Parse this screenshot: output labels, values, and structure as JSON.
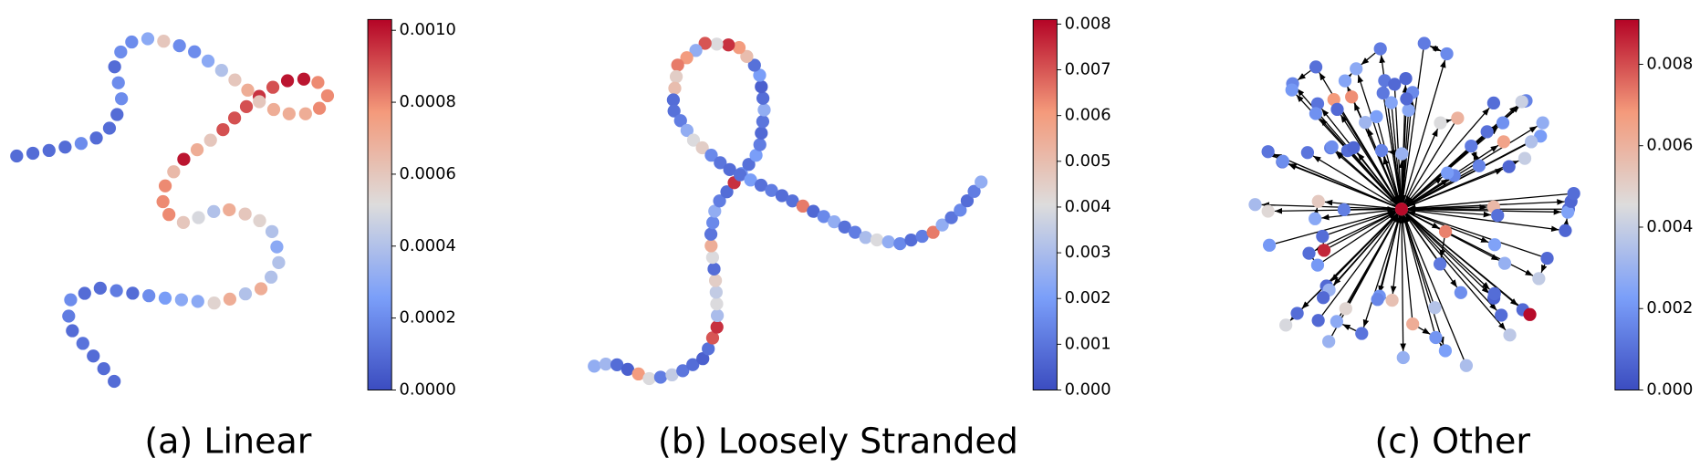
{
  "chart_data": [
    {
      "type": "network",
      "layout": "chain",
      "directed": false,
      "colormap": "coolwarm",
      "title": "(a) Linear",
      "values": [
        0.0001,
        0.0001,
        0.0001,
        0.00012,
        0.0001,
        0.00015,
        0.0002,
        0.0001,
        0.0001,
        0.00015,
        0.0001,
        0.0002,
        0.00025,
        0.0003,
        0.0003,
        0.00055,
        0.0007,
        0.0004,
        0.0007,
        0.0004,
        0.0004,
        0.0003,
        0.0004,
        0.00055,
        0.0006,
        0.0007,
        0.0004,
        0.0005,
        0.0006,
        0.0008,
        0.0008,
        0.0008,
        0.00065,
        0.001,
        0.0007,
        0.0006,
        0.0009,
        0.0009,
        0.0009,
        0.00095,
        0.0009,
        0.001,
        0.001,
        0.0008,
        0.0008,
        0.0008,
        0.0007,
        0.0007,
        0.0007,
        0.0006,
        0.0007,
        0.0006,
        0.0004,
        0.0003,
        0.0002,
        0.0002,
        0.0006,
        0.0003,
        0.0002,
        0.0002,
        0.0001,
        0.0002,
        0.0002,
        0.0001,
        0.0001,
        0.0001,
        0.0002,
        0.0001,
        0.0001,
        0.0001,
        0.0001
      ],
      "colorbar": {
        "clim": [
          0,
          0.00103
        ],
        "ticks": [
          {
            "value": 0,
            "label": "0.0000"
          },
          {
            "value": 0.0002,
            "label": "0.0002"
          },
          {
            "value": 0.0004,
            "label": "0.0004"
          },
          {
            "value": 0.0006,
            "label": "0.0006"
          },
          {
            "value": 0.0008,
            "label": "0.0008"
          },
          {
            "value": 0.001,
            "label": "0.0010"
          }
        ]
      }
    },
    {
      "type": "network",
      "layout": "chain",
      "directed": true,
      "colormap": "coolwarm",
      "title": "(b) Loosely Stranded",
      "values": [
        0.0025,
        0.0028,
        0.0008,
        0.0005,
        0.006,
        0.004,
        0.0012,
        0.0035,
        0.001,
        0.0008,
        0.0005,
        0.0009,
        0.007,
        0.0075,
        0.003,
        0.004,
        0.0035,
        0.0045,
        0.0008,
        0.004,
        0.0055,
        0.001,
        0.0015,
        0.0025,
        0.0012,
        0.0008,
        0.0075,
        0.0018,
        0.0009,
        0.002,
        0.0012,
        0.0007,
        0.001,
        0.0025,
        0.0008,
        0.0005,
        0.002,
        0.0009,
        0.005,
        0.006,
        0.0075,
        0.004,
        0.007,
        0.0025,
        0.006,
        0.0065,
        0.0045,
        0.005,
        0.0008,
        0.0009,
        0.0012,
        0.0025,
        0.004,
        0.0045,
        0.0015,
        0.001,
        0.0008,
        0.0009,
        0.002,
        0.0009,
        0.0012,
        0.0008,
        0.0009,
        0.0065,
        0.0007,
        0.0015,
        0.0025,
        0.0009,
        0.0012,
        0.003,
        0.004,
        0.0025,
        0.0015,
        0.0008,
        0.0012,
        0.0065,
        0.0025,
        0.001,
        0.0015,
        0.0008,
        0.0012,
        0.0025
      ],
      "colorbar": {
        "clim": [
          0,
          0.0081
        ],
        "ticks": [
          {
            "value": 0,
            "label": "0.000"
          },
          {
            "value": 0.001,
            "label": "0.001"
          },
          {
            "value": 0.002,
            "label": "0.002"
          },
          {
            "value": 0.003,
            "label": "0.003"
          },
          {
            "value": 0.004,
            "label": "0.004"
          },
          {
            "value": 0.005,
            "label": "0.005"
          },
          {
            "value": 0.006,
            "label": "0.006"
          },
          {
            "value": 0.007,
            "label": "0.007"
          },
          {
            "value": 0.008,
            "label": "0.008"
          }
        ]
      }
    },
    {
      "type": "network",
      "layout": "star",
      "directed": true,
      "colormap": "coolwarm",
      "title": "(c) Other",
      "values": [
        0.009,
        0.0008,
        0.002,
        0.0012,
        0.003,
        0.0007,
        0.0025,
        0.0045,
        0.0009,
        0.0015,
        0.007,
        0.0022,
        0.0006,
        0.0035,
        0.0011,
        0.0028,
        0.0008,
        0.006,
        0.0018,
        0.0009,
        0.004,
        0.0013,
        0.0024,
        0.0007,
        0.0086,
        0.0016,
        0.003,
        0.001,
        0.0052,
        0.0021,
        0.0008,
        0.0027,
        0.0014,
        0.0065,
        0.0009,
        0.0019,
        0.0033,
        0.0007,
        0.0023,
        0.0011,
        0.0048,
        0.0017,
        0.0008,
        0.0029,
        0.0012,
        0.0058,
        0.0009,
        0.0021,
        0.0038,
        0.0007,
        0.0015,
        0.0026,
        0.001,
        0.0072,
        0.0018,
        0.0008,
        0.0031,
        0.0013,
        0.0044,
        0.0009,
        0.0024,
        0.0016,
        0.0007,
        0.0034,
        0.0011,
        0.0055,
        0.002,
        0.0008,
        0.0027,
        0.0014,
        0.009,
        0.0009,
        0.0022,
        0.0041,
        0.0007,
        0.0017,
        0.0029,
        0.001,
        0.0062,
        0.0019,
        0.0008,
        0.0025,
        0.0012,
        0.0036,
        0.0009,
        0.0021,
        0.0015,
        0.0007,
        0.0047,
        0.0013,
        0.0026,
        0.0009,
        0.0068,
        0.0018,
        0.0008,
        0.003,
        0.0011,
        0.0023,
        0.0016,
        0.0008,
        0.0039
      ],
      "colorbar": {
        "clim": [
          0,
          0.0091
        ],
        "ticks": [
          {
            "value": 0,
            "label": "0.000"
          },
          {
            "value": 0.002,
            "label": "0.002"
          },
          {
            "value": 0.004,
            "label": "0.004"
          },
          {
            "value": 0.006,
            "label": "0.006"
          },
          {
            "value": 0.008,
            "label": "0.008"
          }
        ]
      }
    }
  ]
}
